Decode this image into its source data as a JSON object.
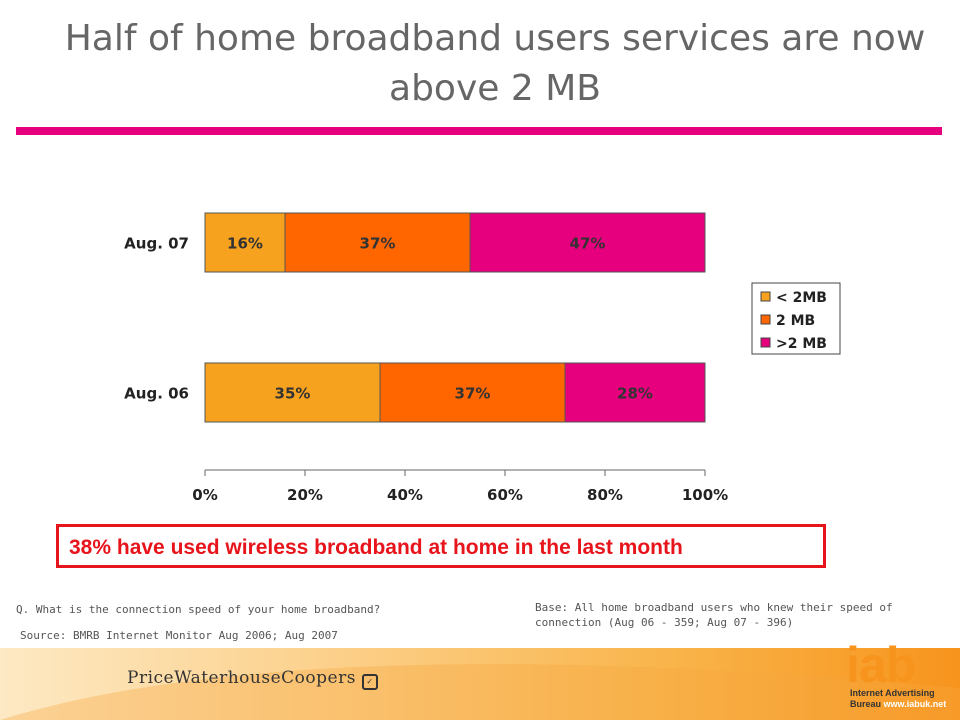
{
  "title": "Half of home broadband users services are now above 2 MB",
  "chart_data": {
    "type": "bar",
    "orientation": "horizontal",
    "stacked": true,
    "categories": [
      "Aug. 07",
      "Aug. 06"
    ],
    "series": [
      {
        "name": "< 2MB",
        "values": [
          16,
          35
        ],
        "labels": [
          "16%",
          "35%"
        ],
        "color": "#f7a21e"
      },
      {
        "name": "2 MB",
        "values": [
          37,
          37
        ],
        "labels": [
          "37%",
          "37%"
        ],
        "color": "#ff6600"
      },
      {
        "name": ">2 MB",
        "values": [
          47,
          28
        ],
        "labels": [
          "47%",
          "28%"
        ],
        "color": "#e6007e"
      }
    ],
    "xlim": [
      0,
      100
    ],
    "xticks": [
      "0%",
      "20%",
      "40%",
      "60%",
      "80%",
      "100%"
    ],
    "legend": "right",
    "grid": false
  },
  "callout": "38% have used wireless broadband at home in the last month",
  "question": "Q. What is the connection  speed of your home broadband?",
  "source": "Source: BMRB Internet Monitor Aug  2006; Aug 2007",
  "base": "Base: All home broadband users who knew their speed of connection (Aug 06 - 359; Aug 07 - 396)",
  "footer": {
    "pwc_logo": "PriceWaterhouseCoopers",
    "iab_logo": "iab",
    "iab_line1": "Internet Advertising",
    "iab_line2": "Bureau",
    "iab_url": "www.iabuk.net"
  }
}
